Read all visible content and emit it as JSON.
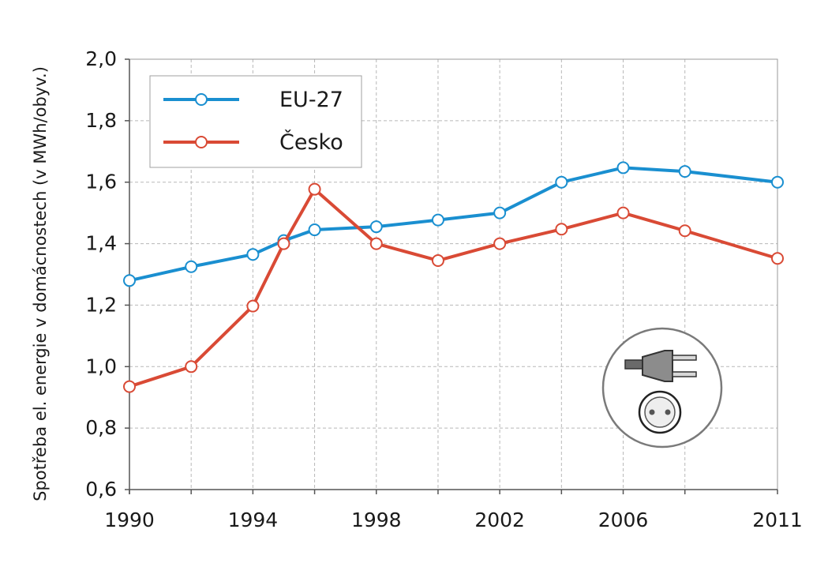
{
  "chart_data": {
    "type": "line",
    "ylabel": "Spotřeba el. energie v domácnostech (v MWh/obyv.)",
    "xlabel": "",
    "xlim": [
      1990,
      2011
    ],
    "ylim": [
      0.6,
      2.0
    ],
    "x_ticks": [
      1990,
      1994,
      1998,
      2002,
      2006,
      2011
    ],
    "x_tick_labels": [
      "1990",
      "1994",
      "1998",
      "2002",
      "2006",
      "2011"
    ],
    "x_grid": [
      1990,
      1992,
      1994,
      1996,
      1998,
      2000,
      2002,
      2004,
      2006,
      2008,
      2011
    ],
    "y_ticks": [
      0.6,
      0.8,
      1.0,
      1.2,
      1.4,
      1.6,
      1.8,
      2.0
    ],
    "y_tick_labels": [
      "0,6",
      "0,8",
      "1,0",
      "1,2",
      "1,4",
      "1,6",
      "1,8",
      "2,0"
    ],
    "grid": true,
    "legend_position": "top-left",
    "series": [
      {
        "name": "EU-27",
        "color": "#1a8fd0",
        "points": [
          [
            1990,
            1.28
          ],
          [
            1992,
            1.325
          ],
          [
            1994,
            1.365
          ],
          [
            1995,
            1.41
          ],
          [
            1996,
            1.445
          ],
          [
            1998,
            1.455
          ],
          [
            2000,
            1.477
          ],
          [
            2002,
            1.5
          ],
          [
            2004,
            1.6
          ],
          [
            2006,
            1.647
          ],
          [
            2008,
            1.635
          ],
          [
            2011,
            1.6
          ]
        ]
      },
      {
        "name": "Česko",
        "color": "#d94a35",
        "points": [
          [
            1990,
            0.935
          ],
          [
            1992,
            1.0
          ],
          [
            1994,
            1.197
          ],
          [
            1995,
            1.4
          ],
          [
            1996,
            1.577
          ],
          [
            1998,
            1.4
          ],
          [
            2000,
            1.345
          ],
          [
            2002,
            1.4
          ],
          [
            2004,
            1.447
          ],
          [
            2006,
            1.5
          ],
          [
            2008,
            1.442
          ],
          [
            2011,
            1.352
          ]
        ]
      }
    ],
    "decoration_icon": "power-plug-and-socket-icon"
  }
}
